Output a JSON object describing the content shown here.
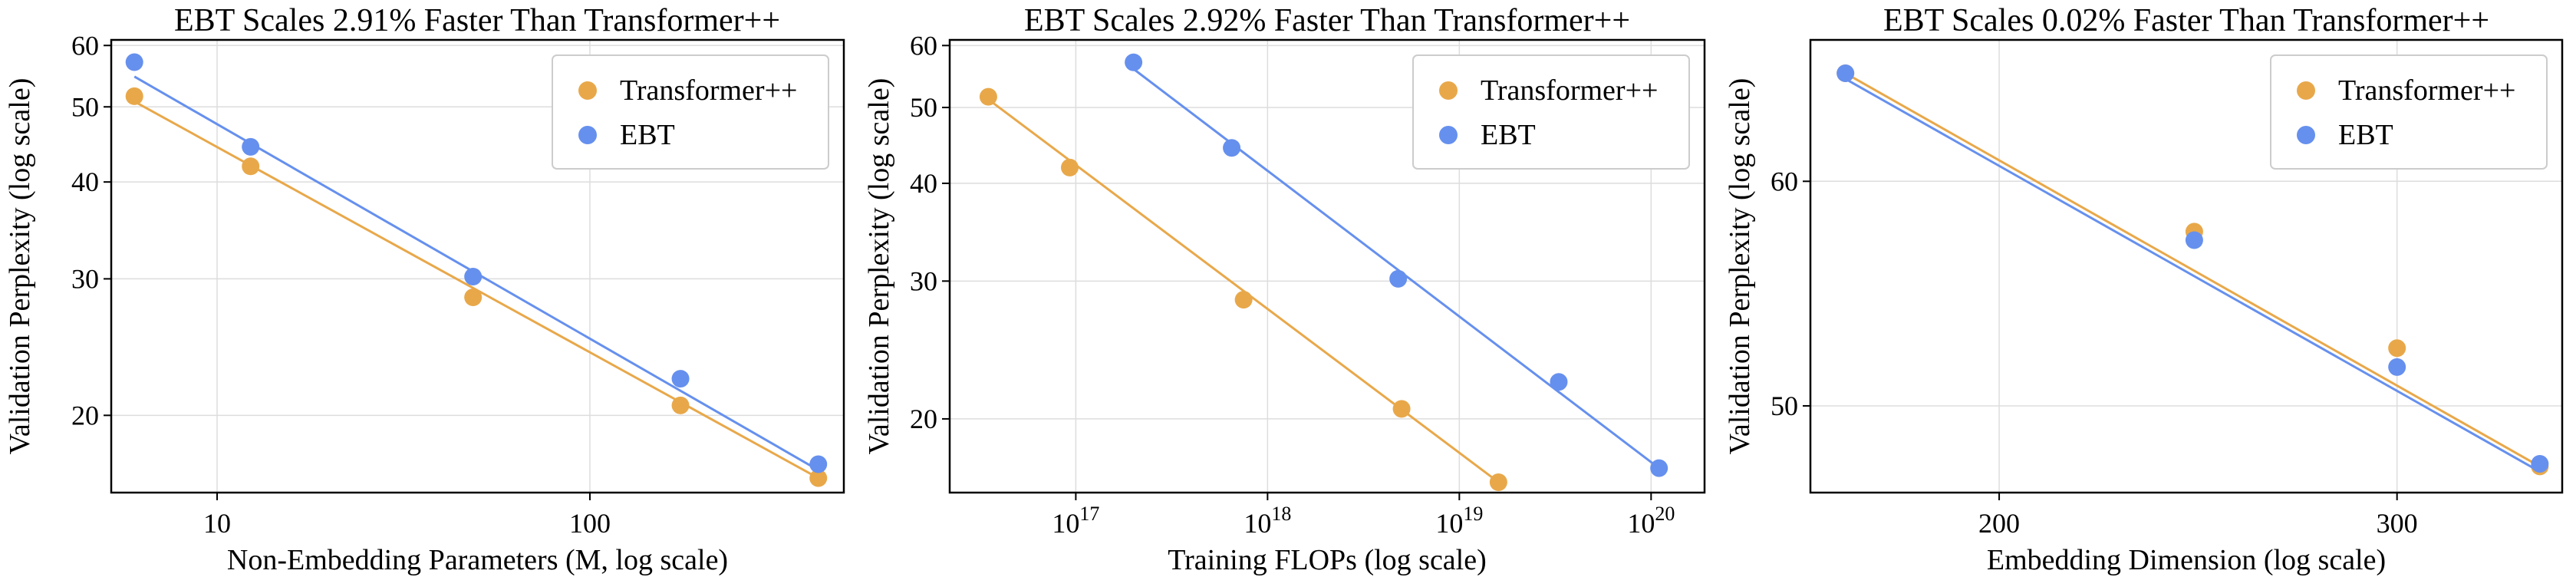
{
  "colors": {
    "transformer": "#E8A84A",
    "ebt": "#6690EE"
  },
  "chart_data": [
    {
      "type": "scatter",
      "title": "EBT Scales 2.91% Faster Than Transformer++",
      "xlabel": "Non-Embedding Parameters (M, log scale)",
      "ylabel": "Validation Perplexity (log scale)",
      "xscale": "log",
      "yscale": "log",
      "xlim": [
        5.2,
        480
      ],
      "ylim": [
        15.9,
        61
      ],
      "xticks": [
        {
          "value": 10,
          "label": "10"
        },
        {
          "value": 100,
          "label": "100"
        }
      ],
      "yticks": [
        {
          "value": 20,
          "label": "20"
        },
        {
          "value": 30,
          "label": "30"
        },
        {
          "value": 40,
          "label": "40"
        },
        {
          "value": 50,
          "label": "50"
        },
        {
          "value": 60,
          "label": "60"
        }
      ],
      "grid": true,
      "legend": "top-right",
      "series": [
        {
          "name": "Transformer++",
          "color_key": "transformer",
          "x": [
            6,
            12.3,
            48.6,
            175,
            410
          ],
          "y": [
            51.6,
            41.9,
            28.4,
            20.6,
            16.6
          ],
          "fit": [
            [
              6,
              50.8
            ],
            [
              410,
              16.6
            ]
          ]
        },
        {
          "name": "EBT",
          "color_key": "ebt",
          "x": [
            6,
            12.3,
            48.6,
            175,
            410
          ],
          "y": [
            57.1,
            44.4,
            30.2,
            22.3,
            17.3
          ],
          "fit": [
            [
              6,
              54.7
            ],
            [
              410,
              17.0
            ]
          ]
        }
      ]
    },
    {
      "type": "scatter",
      "title": "EBT Scales 2.92% Faster Than Transformer++",
      "xlabel": "Training FLOPs (log scale)",
      "ylabel": "Validation Perplexity (log scale)",
      "xscale": "log",
      "yscale": "log",
      "xlim": [
        2.2e+16,
        1.9e+20
      ],
      "ylim": [
        16.1,
        61
      ],
      "xticks": [
        {
          "value": 1e+17,
          "label": "10",
          "exp": "17"
        },
        {
          "value": 1e+18,
          "label": "10",
          "exp": "18"
        },
        {
          "value": 1e+19,
          "label": "10",
          "exp": "19"
        },
        {
          "value": 1e+20,
          "label": "10",
          "exp": "20"
        }
      ],
      "yticks": [
        {
          "value": 20,
          "label": "20"
        },
        {
          "value": 30,
          "label": "30"
        },
        {
          "value": 40,
          "label": "40"
        },
        {
          "value": 50,
          "label": "50"
        },
        {
          "value": 60,
          "label": "60"
        }
      ],
      "grid": true,
      "legend": "top-right",
      "series": [
        {
          "name": "Transformer++",
          "color_key": "transformer",
          "x": [
            3.5e+16,
            9.3e+16,
            7.5e+17,
            5e+18,
            1.6e+19
          ],
          "y": [
            51.6,
            41.9,
            28.4,
            20.6,
            16.6
          ],
          "fit": [
            [
              3.5e+16,
              51.2
            ],
            [
              1.6e+19,
              16.6
            ]
          ]
        },
        {
          "name": "EBT",
          "color_key": "ebt",
          "x": [
            2e+17,
            6.5e+17,
            4.8e+18,
            3.3e+19,
            1.1e+20
          ],
          "y": [
            57.1,
            44.4,
            30.2,
            22.3,
            17.3
          ],
          "fit": [
            [
              2e+17,
              56.0
            ],
            [
              1.1e+20,
              17.3
            ]
          ]
        }
      ]
    },
    {
      "type": "scatter",
      "title": "EBT Scales 0.02% Faster Than Transformer++",
      "xlabel": "Embedding Dimension (log scale)",
      "ylabel": "Validation Perplexity (log scale)",
      "xscale": "log",
      "yscale": "log",
      "xlim": [
        165,
        355
      ],
      "ylim": [
        46.6,
        67.3
      ],
      "xticks": [
        {
          "value": 200,
          "label": "200"
        },
        {
          "value": 300,
          "label": "300"
        }
      ],
      "yticks": [
        {
          "value": 50,
          "label": "50"
        },
        {
          "value": 60,
          "label": "60"
        }
      ],
      "grid": true,
      "legend": "top-right",
      "series": [
        {
          "name": "Transformer++",
          "color_key": "transformer",
          "x": [
            171,
            244,
            300,
            347
          ],
          "y": [
            65.5,
            57.6,
            52.4,
            47.6
          ],
          "fit": [
            [
              171,
              65.5
            ],
            [
              347,
              47.6
            ]
          ]
        },
        {
          "name": "EBT",
          "color_key": "ebt",
          "x": [
            171,
            244,
            300,
            347
          ],
          "y": [
            65.5,
            57.2,
            51.6,
            47.7
          ],
          "fit": [
            [
              171,
              65.2
            ],
            [
              347,
              47.4
            ]
          ]
        }
      ]
    }
  ]
}
